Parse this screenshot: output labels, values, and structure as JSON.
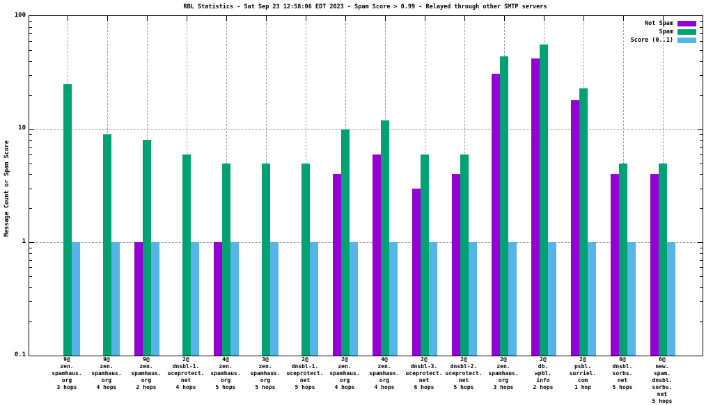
{
  "title": "RBL Statistics - Sat Sep 23 12:58:06 EDT 2023 - Spam Score > 0.99 - Relayed through other SMTP servers",
  "ylabel": "Message Count or Spam Score",
  "legend": [
    {
      "label": "Not Spam",
      "color": "#9400D3"
    },
    {
      "label": "Spam",
      "color": "#00A273"
    },
    {
      "label": "Score (0..1)",
      "color": "#56B4E9"
    }
  ],
  "chart_data": {
    "type": "bar",
    "scale": "log",
    "ylim": [
      0.1,
      100
    ],
    "grid": true,
    "legend_position": "top-right",
    "title": "RBL Statistics - Sat Sep 23 12:58:06 EDT 2023 - Spam Score > 0.99 - Relayed through other SMTP servers",
    "xlabel": "",
    "ylabel": "Message Count or Spam Score",
    "yticks": [
      {
        "value": 100,
        "label": "100"
      },
      {
        "value": 10,
        "label": "10"
      },
      {
        "value": 1,
        "label": "1"
      },
      {
        "value": 0.1,
        "label": "0.1"
      }
    ],
    "categories": [
      [
        "9@",
        "zen.",
        "spamhaus.",
        "org",
        "3 hops"
      ],
      [
        "9@",
        "zen.",
        "spamhaus.",
        "org",
        "4 hops"
      ],
      [
        "9@",
        "zen.",
        "spamhaus.",
        "org",
        "2 hops"
      ],
      [
        "2@",
        "dnsbl-1.",
        "uceprotect.",
        "net",
        "4 hops"
      ],
      [
        "4@",
        "zen.",
        "spamhaus.",
        "org",
        "5 hops"
      ],
      [
        "3@",
        "zen.",
        "spamhaus.",
        "org",
        "5 hops"
      ],
      [
        "2@",
        "dnsbl-1.",
        "uceprotect.",
        "net",
        "5 hops"
      ],
      [
        "2@",
        "zen.",
        "spamhaus.",
        "org",
        "4 hops"
      ],
      [
        "4@",
        "zen.",
        "spamhaus.",
        "org",
        "4 hops"
      ],
      [
        "2@",
        "dnsbl-3.",
        "uceprotect.",
        "net",
        "6 hops"
      ],
      [
        "2@",
        "dnsbl-2.",
        "uceprotect.",
        "net",
        "5 hops"
      ],
      [
        "2@",
        "zen.",
        "spamhaus.",
        "org",
        "3 hops"
      ],
      [
        "2@",
        "db.",
        "wpbl.",
        "info",
        "2 hops"
      ],
      [
        "2@",
        "psbl.",
        "surriel.",
        "com",
        "1 hop"
      ],
      [
        "6@",
        "dnsbl.",
        "sorbs.",
        "net",
        "5 hops"
      ],
      [
        "6@",
        "new.",
        "spam.",
        "dnsbl.",
        "sorbs.",
        "net",
        "5 hops"
      ]
    ],
    "series": [
      {
        "name": "Not Spam",
        "color": "#9400D3",
        "values": [
          null,
          null,
          1,
          null,
          1,
          null,
          null,
          4,
          6,
          3,
          4,
          31,
          42,
          18,
          4,
          4
        ]
      },
      {
        "name": "Spam",
        "color": "#00A273",
        "values": [
          25,
          9,
          8,
          6,
          5,
          5,
          5,
          10,
          12,
          6,
          6,
          44,
          56,
          23,
          5,
          5
        ]
      },
      {
        "name": "Score (0..1)",
        "color": "#56B4E9",
        "values": [
          1,
          1,
          1,
          1,
          1,
          1,
          1,
          1,
          1,
          1,
          1,
          1,
          1,
          1,
          1,
          1
        ]
      }
    ]
  }
}
